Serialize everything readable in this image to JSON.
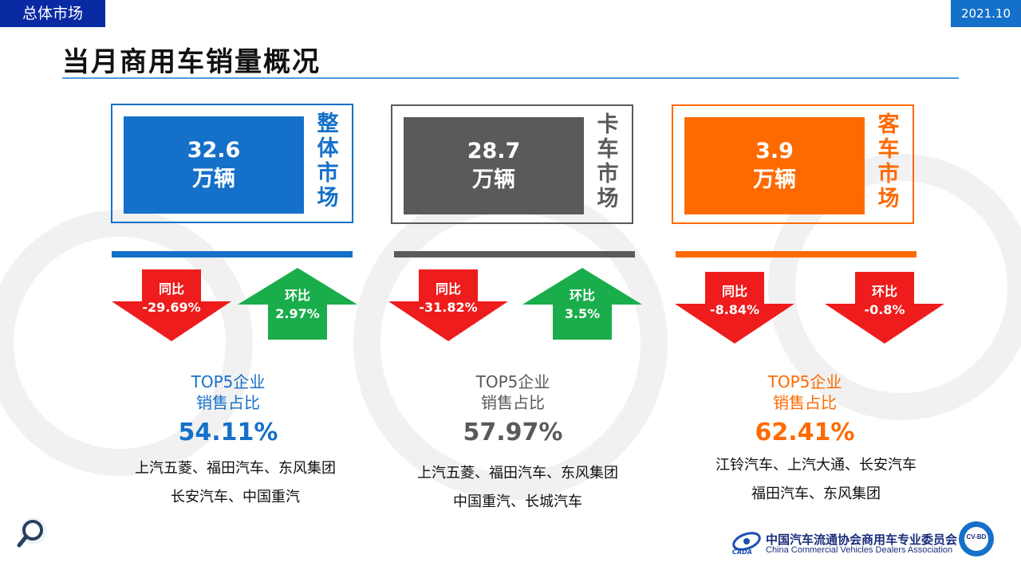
{
  "header": {
    "section_tag": "总体市场",
    "date_tag": "2021.10",
    "title": "当月商用车销量概况"
  },
  "colors": {
    "blue": "#1570c9",
    "gray": "#5a5a5a",
    "orange": "#ff6a00",
    "red": "#ee1c1c",
    "green": "#1aad4b"
  },
  "markets": [
    {
      "value": "32.6",
      "unit": "万辆",
      "label": [
        "整",
        "体",
        "市",
        "场"
      ],
      "yoy_label": "同比",
      "yoy": "-29.69%",
      "yoy_dir": "down",
      "mom_label": "环比",
      "mom": "2.97%",
      "mom_dir": "up",
      "top5_line1": "TOP5企业",
      "top5_line2": "销售占比",
      "top5_pct": "54.11%",
      "companies": [
        "上汽五菱、福田汽车、东风集团",
        "长安汽车、中国重汽"
      ]
    },
    {
      "value": "28.7",
      "unit": "万辆",
      "label": [
        "卡",
        "车",
        "市",
        "场"
      ],
      "yoy_label": "同比",
      "yoy": "-31.82%",
      "yoy_dir": "down",
      "mom_label": "环比",
      "mom": "3.5%",
      "mom_dir": "up",
      "top5_line1": "TOP5企业",
      "top5_line2": "销售占比",
      "top5_pct": "57.97%",
      "companies": [
        "上汽五菱、福田汽车、东风集团",
        "中国重汽、长城汽车"
      ]
    },
    {
      "value": "3.9",
      "unit": "万辆",
      "label": [
        "客",
        "车",
        "市",
        "场"
      ],
      "yoy_label": "同比",
      "yoy": "-8.84%",
      "yoy_dir": "down",
      "mom_label": "环比",
      "mom": "-0.8%",
      "mom_dir": "down",
      "top5_line1": "TOP5企业",
      "top5_line2": "销售占比",
      "top5_pct": "62.41%",
      "companies": [
        "江铃汽车、上汽大通、长安汽车",
        "福田汽车、东风集团"
      ]
    }
  ],
  "footer": {
    "org_cn": "中国汽车流通协会商用车专业委员会",
    "org_en": "China Commercial Vehicles Dealers Association",
    "logo_text": "CADA",
    "badge_text": "CV-BD",
    "icon": "magnifier-icon"
  }
}
